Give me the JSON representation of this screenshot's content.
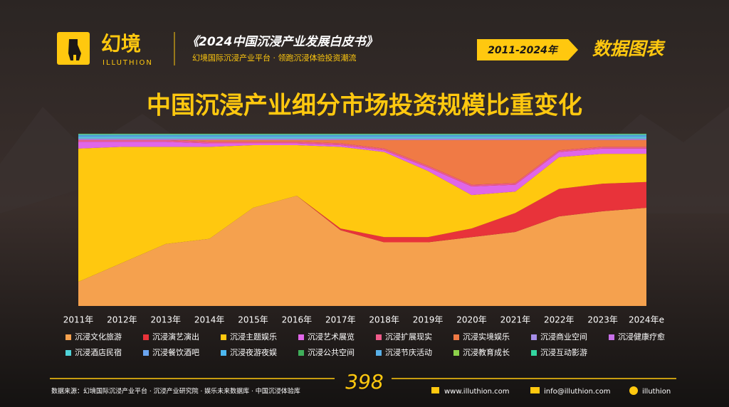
{
  "header": {
    "brand": "幻境",
    "brand_en": "ILLUTHION",
    "book": "《2024中国沉浸产业发展白皮书》",
    "tagline": "幻境国际沉浸产业平台 · 领跑沉浸体验投资潮流",
    "period": "2011-2024年",
    "section": "数据图表"
  },
  "chart_data": {
    "type": "stacked_area_percent",
    "title": "中国沉浸产业细分市场投资规模比重变化",
    "categories": [
      "2011年",
      "2012年",
      "2013年",
      "2014年",
      "2015年",
      "2016年",
      "2017年",
      "2018年",
      "2019年",
      "2020年",
      "2021年",
      "2022年",
      "2023年",
      "2024年e"
    ],
    "ylim": [
      0,
      100
    ],
    "series": [
      {
        "name": "沉浸文化旅游",
        "color": "#f5a14e",
        "values": [
          14,
          25,
          36,
          39,
          57,
          64,
          44,
          37,
          37,
          40,
          43,
          52,
          55,
          57
        ]
      },
      {
        "name": "沉浸演艺演出",
        "color": "#e8333a",
        "values": [
          0,
          0,
          0,
          0,
          0,
          0,
          1,
          3,
          3,
          5,
          11,
          16,
          16,
          15
        ]
      },
      {
        "name": "沉浸主题娱乐",
        "color": "#ffc80f",
        "values": [
          77.4,
          67.4,
          56.4,
          53.4,
          36.4,
          29.4,
          47.4,
          49.4,
          38.4,
          19.4,
          12.4,
          18.4,
          17.4,
          16.4
        ]
      },
      {
        "name": "沉浸艺术展览",
        "color": "#e066e8",
        "values": [
          4,
          3,
          3,
          2,
          1,
          1,
          1,
          1,
          2,
          5,
          4,
          3,
          3,
          3
        ]
      },
      {
        "name": "沉浸扩展现实",
        "color": "#ef5b8a",
        "values": [
          1,
          1,
          1,
          1,
          1,
          1,
          1,
          1,
          1,
          1,
          1,
          1,
          1,
          1
        ]
      },
      {
        "name": "沉浸实境娱乐",
        "color": "#f07a45",
        "values": [
          0,
          0,
          0,
          1,
          1,
          1,
          2,
          5,
          15,
          26,
          25,
          6,
          4,
          4
        ]
      },
      {
        "name": "沉浸商业空间",
        "color": "#a58ce6",
        "values": [
          0.5,
          0.5,
          0.5,
          0.5,
          0.5,
          0.5,
          0.5,
          0.5,
          0.5,
          0.5,
          0.5,
          0.5,
          0.5,
          0.5
        ]
      },
      {
        "name": "沉浸健康疗愈",
        "color": "#c770e8",
        "values": [
          0.3,
          0.3,
          0.3,
          0.3,
          0.3,
          0.3,
          0.3,
          0.3,
          0.3,
          0.3,
          0.3,
          0.3,
          0.3,
          0.3
        ]
      },
      {
        "name": "沉浸酒店民宿",
        "color": "#4fd3d8",
        "values": [
          0.8,
          0.8,
          0.8,
          0.8,
          0.8,
          0.8,
          0.8,
          0.8,
          0.8,
          0.8,
          0.8,
          0.8,
          0.8,
          0.8
        ]
      },
      {
        "name": "沉浸餐饮酒吧",
        "color": "#6aa5f0",
        "values": [
          0.5,
          0.5,
          0.5,
          0.5,
          0.5,
          0.5,
          0.5,
          0.5,
          0.5,
          0.5,
          0.5,
          0.5,
          0.5,
          0.5
        ]
      },
      {
        "name": "沉浸夜游夜娱",
        "color": "#4db8f0",
        "values": [
          0.6,
          0.6,
          0.6,
          0.6,
          0.6,
          0.6,
          0.6,
          0.6,
          0.6,
          0.6,
          0.6,
          0.6,
          0.6,
          0.6
        ]
      },
      {
        "name": "沉浸公共空间",
        "color": "#3fae5a",
        "values": [
          0.2,
          0.2,
          0.2,
          0.2,
          0.2,
          0.2,
          0.2,
          0.2,
          0.2,
          0.2,
          0.2,
          0.2,
          0.2,
          0.2
        ]
      },
      {
        "name": "沉浸节庆活动",
        "color": "#58b0e8",
        "values": [
          0.3,
          0.3,
          0.3,
          0.3,
          0.3,
          0.3,
          0.3,
          0.3,
          0.3,
          0.3,
          0.3,
          0.3,
          0.3,
          0.3
        ]
      },
      {
        "name": "沉浸教育成长",
        "color": "#8cd14a",
        "values": [
          0.2,
          0.2,
          0.2,
          0.2,
          0.2,
          0.2,
          0.2,
          0.2,
          0.2,
          0.2,
          0.2,
          0.2,
          0.2,
          0.2
        ]
      },
      {
        "name": "沉浸互动影游",
        "color": "#33d6a0",
        "values": [
          0.2,
          0.2,
          0.2,
          0.2,
          0.2,
          0.2,
          0.2,
          0.2,
          0.2,
          0.2,
          0.2,
          0.2,
          0.2,
          0.2
        ]
      }
    ]
  },
  "footer": {
    "source": "数据来源：幻境国际沉浸产业平台 · 沉浸产业研究院 · 娱乐未来数据库 · 中国沉浸体验库",
    "page": "398",
    "website": "www.illuthion.com",
    "email": "info@illuthion.com",
    "social": "illuthion"
  }
}
